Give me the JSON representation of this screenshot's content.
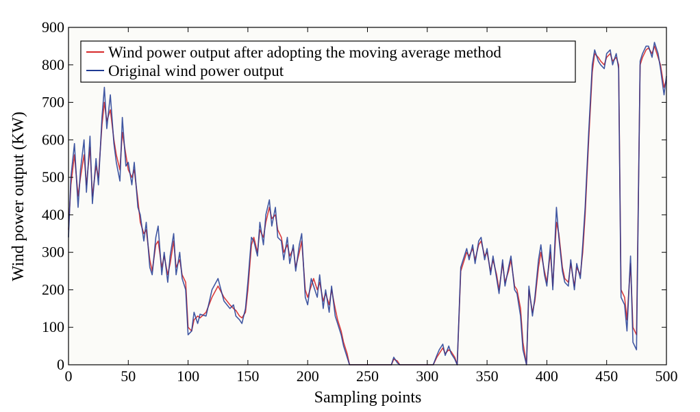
{
  "chart_data": {
    "type": "line",
    "title": "",
    "xlabel": "Sampling points",
    "ylabel": "Wind power output (KW)",
    "xlim": [
      0,
      500
    ],
    "ylim": [
      0,
      900
    ],
    "xticks": [
      0,
      50,
      100,
      150,
      200,
      250,
      300,
      350,
      400,
      450,
      500
    ],
    "yticks": [
      0,
      100,
      200,
      300,
      400,
      500,
      600,
      700,
      800,
      900
    ],
    "grid": false,
    "legend_position": "top-left",
    "series": [
      {
        "name": "Wind power output after adopting the moving average method",
        "color": "#d62728",
        "x": [
          0,
          2,
          5,
          8,
          10,
          13,
          15,
          18,
          20,
          23,
          25,
          28,
          30,
          32,
          35,
          38,
          40,
          43,
          45,
          48,
          50,
          53,
          55,
          58,
          60,
          63,
          65,
          68,
          70,
          73,
          75,
          78,
          80,
          83,
          85,
          88,
          90,
          93,
          95,
          98,
          100,
          103,
          105,
          108,
          110,
          115,
          120,
          125,
          130,
          135,
          138,
          140,
          143,
          145,
          148,
          150,
          153,
          155,
          158,
          160,
          163,
          165,
          168,
          170,
          173,
          175,
          178,
          180,
          183,
          185,
          188,
          190,
          193,
          195,
          198,
          200,
          203,
          205,
          208,
          210,
          213,
          215,
          218,
          220,
          223,
          225,
          228,
          230,
          233,
          235,
          250,
          270,
          272,
          275,
          277,
          300,
          305,
          308,
          310,
          313,
          315,
          318,
          320,
          323,
          325,
          328,
          330,
          333,
          335,
          338,
          340,
          343,
          345,
          348,
          350,
          353,
          355,
          358,
          360,
          363,
          365,
          368,
          370,
          373,
          375,
          378,
          380,
          383,
          385,
          388,
          390,
          393,
          395,
          398,
          400,
          403,
          405,
          408,
          410,
          413,
          415,
          418,
          420,
          423,
          425,
          428,
          430,
          432,
          435,
          438,
          440,
          443,
          445,
          448,
          450,
          453,
          455,
          458,
          460,
          462,
          465,
          467,
          470,
          472,
          475,
          478,
          480,
          483,
          485,
          488,
          490,
          493,
          495,
          498,
          500
        ],
        "y": [
          360,
          480,
          560,
          450,
          500,
          560,
          480,
          580,
          450,
          530,
          500,
          640,
          700,
          650,
          680,
          600,
          560,
          520,
          620,
          560,
          520,
          500,
          520,
          440,
          380,
          350,
          360,
          280,
          250,
          320,
          330,
          260,
          290,
          240,
          270,
          330,
          260,
          280,
          240,
          220,
          100,
          90,
          120,
          130,
          125,
          140,
          180,
          210,
          180,
          160,
          150,
          145,
          130,
          125,
          140,
          200,
          320,
          340,
          300,
          360,
          340,
          380,
          420,
          390,
          400,
          360,
          340,
          300,
          320,
          290,
          310,
          260,
          300,
          330,
          200,
          180,
          210,
          230,
          200,
          220,
          170,
          190,
          160,
          200,
          150,
          120,
          90,
          60,
          30,
          0,
          0,
          0,
          15,
          10,
          0,
          0,
          0,
          20,
          30,
          45,
          30,
          40,
          35,
          20,
          0,
          250,
          270,
          300,
          290,
          310,
          280,
          320,
          330,
          290,
          300,
          250,
          280,
          240,
          200,
          270,
          220,
          250,
          280,
          210,
          200,
          150,
          60,
          0,
          200,
          140,
          170,
          260,
          300,
          250,
          220,
          300,
          210,
          380,
          350,
          260,
          230,
          220,
          270,
          210,
          260,
          240,
          300,
          400,
          600,
          780,
          830,
          820,
          810,
          800,
          820,
          830,
          810,
          820,
          800,
          200,
          180,
          120,
          270,
          100,
          80,
          800,
          820,
          840,
          845,
          830,
          850,
          820,
          800,
          740,
          760
        ]
      },
      {
        "name": "Original wind power output",
        "color": "#1f3a93",
        "x": [
          0,
          2,
          5,
          8,
          10,
          13,
          15,
          18,
          20,
          23,
          25,
          28,
          30,
          32,
          35,
          38,
          40,
          43,
          45,
          48,
          50,
          53,
          55,
          58,
          60,
          63,
          65,
          68,
          70,
          73,
          75,
          78,
          80,
          83,
          85,
          88,
          90,
          93,
          95,
          98,
          100,
          103,
          105,
          108,
          110,
          115,
          120,
          125,
          130,
          135,
          138,
          140,
          143,
          145,
          148,
          150,
          153,
          155,
          158,
          160,
          163,
          165,
          168,
          170,
          173,
          175,
          178,
          180,
          183,
          185,
          188,
          190,
          193,
          195,
          198,
          200,
          203,
          205,
          208,
          210,
          213,
          215,
          218,
          220,
          223,
          225,
          228,
          230,
          233,
          235,
          250,
          270,
          272,
          275,
          277,
          300,
          305,
          308,
          310,
          313,
          315,
          318,
          320,
          323,
          325,
          328,
          330,
          333,
          335,
          338,
          340,
          343,
          345,
          348,
          350,
          353,
          355,
          358,
          360,
          363,
          365,
          368,
          370,
          373,
          375,
          378,
          380,
          383,
          385,
          388,
          390,
          393,
          395,
          398,
          400,
          403,
          405,
          408,
          410,
          413,
          415,
          418,
          420,
          423,
          425,
          428,
          430,
          432,
          435,
          438,
          440,
          443,
          445,
          448,
          450,
          453,
          455,
          458,
          460,
          462,
          465,
          467,
          470,
          472,
          475,
          478,
          480,
          483,
          485,
          488,
          490,
          493,
          495,
          498,
          500
        ],
        "y": [
          340,
          500,
          590,
          420,
          520,
          600,
          460,
          610,
          430,
          550,
          480,
          660,
          740,
          630,
          720,
          590,
          540,
          490,
          660,
          530,
          540,
          480,
          540,
          420,
          400,
          330,
          380,
          260,
          240,
          340,
          370,
          240,
          300,
          220,
          290,
          350,
          240,
          300,
          230,
          200,
          80,
          90,
          140,
          110,
          135,
          130,
          200,
          230,
          170,
          150,
          160,
          130,
          120,
          110,
          150,
          220,
          340,
          330,
          290,
          380,
          320,
          400,
          440,
          370,
          420,
          340,
          330,
          280,
          340,
          270,
          320,
          250,
          320,
          350,
          180,
          160,
          230,
          210,
          180,
          240,
          150,
          200,
          140,
          210,
          130,
          110,
          80,
          50,
          20,
          0,
          0,
          0,
          20,
          5,
          0,
          0,
          0,
          25,
          40,
          55,
          25,
          50,
          30,
          15,
          0,
          260,
          280,
          310,
          280,
          320,
          270,
          330,
          340,
          280,
          310,
          240,
          290,
          230,
          190,
          280,
          210,
          260,
          290,
          200,
          190,
          130,
          40,
          0,
          210,
          130,
          180,
          280,
          320,
          240,
          210,
          320,
          200,
          420,
          340,
          250,
          220,
          210,
          280,
          200,
          270,
          230,
          320,
          420,
          620,
          800,
          840,
          810,
          800,
          790,
          830,
          840,
          800,
          830,
          790,
          180,
          160,
          90,
          290,
          60,
          40,
          810,
          830,
          850,
          850,
          820,
          860,
          830,
          790,
          720,
          770
        ]
      }
    ]
  }
}
